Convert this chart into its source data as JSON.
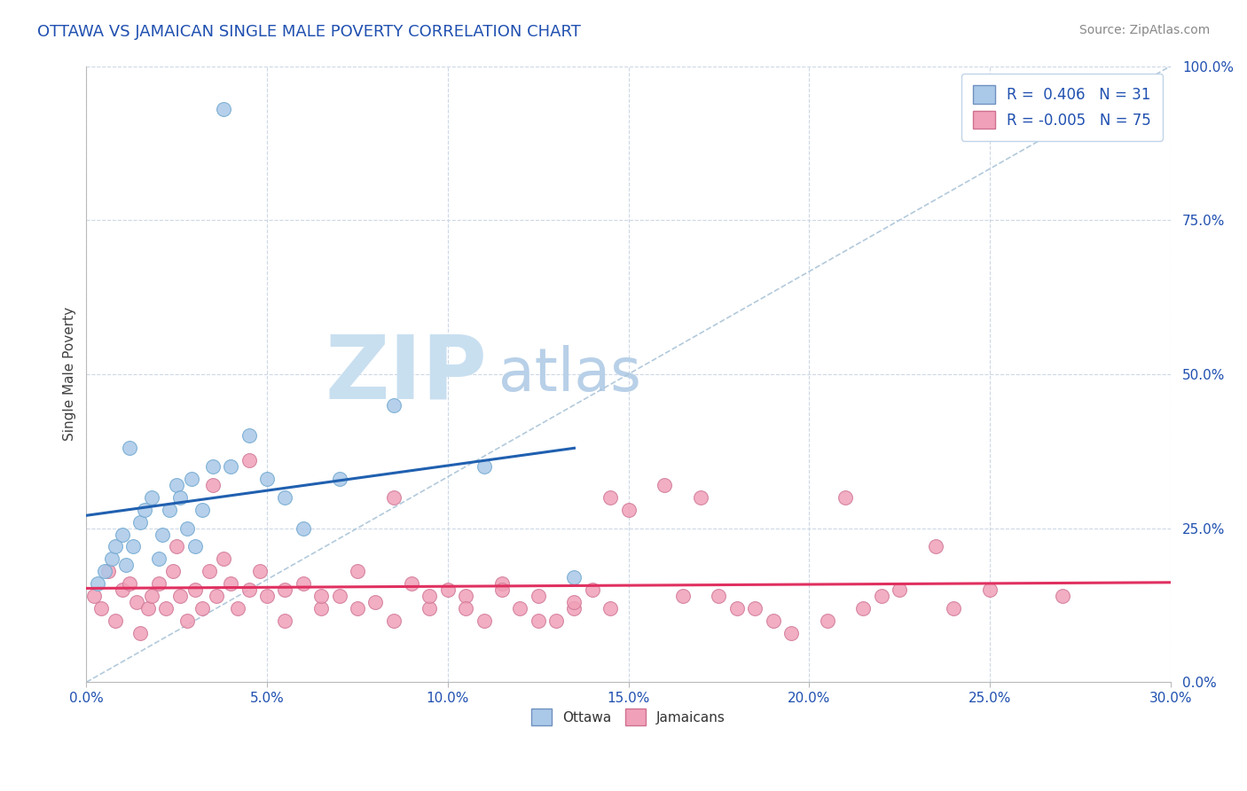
{
  "title": "OTTAWA VS JAMAICAN SINGLE MALE POVERTY CORRELATION CHART",
  "source_text": "Source: ZipAtlas.com",
  "ylabel": "Single Male Poverty",
  "xlim": [
    0.0,
    30.0
  ],
  "ylim": [
    0.0,
    100.0
  ],
  "yticks": [
    0.0,
    25.0,
    50.0,
    75.0,
    100.0
  ],
  "xticks": [
    0.0,
    5.0,
    10.0,
    15.0,
    20.0,
    25.0,
    30.0
  ],
  "legend_R_blue": "0.406",
  "legend_N_blue": "31",
  "legend_R_pink": "-0.005",
  "legend_N_pink": "75",
  "blue_dot_color": "#aac8e8",
  "pink_dot_color": "#f0a0b8",
  "blue_line_color": "#2060b0",
  "pink_line_color": "#e03060",
  "legend_text_color": "#2050b0",
  "title_color": "#2050b0",
  "axis_tick_color": "#2050b0",
  "ylabel_color": "#404040",
  "watermark_zip_color": "#c8dff0",
  "watermark_atlas_color": "#b8d0e8",
  "background_color": "#ffffff",
  "grid_color": "#c8d4e4",
  "ottawa_x": [
    0.3,
    0.5,
    0.7,
    0.8,
    1.0,
    1.1,
    1.3,
    1.5,
    1.6,
    1.8,
    2.0,
    2.1,
    2.3,
    2.5,
    2.6,
    2.8,
    3.0,
    3.2,
    3.5,
    4.0,
    4.5,
    5.0,
    5.5,
    6.0,
    7.0,
    8.5,
    11.0,
    13.5,
    1.2,
    2.9,
    3.8
  ],
  "ottawa_y": [
    16.0,
    18.0,
    20.0,
    22.0,
    24.0,
    19.0,
    22.0,
    26.0,
    28.0,
    30.0,
    20.0,
    24.0,
    28.0,
    32.0,
    30.0,
    25.0,
    22.0,
    28.0,
    35.0,
    35.0,
    40.0,
    33.0,
    30.0,
    25.0,
    33.0,
    45.0,
    35.0,
    17.0,
    38.0,
    33.0,
    93.0
  ],
  "jamaican_x": [
    0.2,
    0.4,
    0.6,
    0.8,
    1.0,
    1.2,
    1.4,
    1.5,
    1.7,
    1.8,
    2.0,
    2.2,
    2.4,
    2.6,
    2.8,
    3.0,
    3.2,
    3.4,
    3.6,
    3.8,
    4.0,
    4.2,
    4.5,
    4.8,
    5.0,
    5.5,
    6.0,
    6.5,
    7.0,
    7.5,
    8.0,
    8.5,
    9.0,
    9.5,
    10.0,
    10.5,
    11.0,
    11.5,
    12.0,
    12.5,
    13.0,
    13.5,
    14.0,
    14.5,
    15.0,
    16.0,
    17.0,
    17.5,
    18.5,
    19.5,
    20.5,
    21.5,
    22.0,
    23.5,
    25.0,
    2.5,
    3.5,
    4.5,
    5.5,
    6.5,
    7.5,
    8.5,
    9.5,
    10.5,
    11.5,
    12.5,
    13.5,
    14.5,
    16.5,
    18.0,
    19.0,
    21.0,
    22.5,
    24.0,
    27.0
  ],
  "jamaican_y": [
    14.0,
    12.0,
    18.0,
    10.0,
    15.0,
    16.0,
    13.0,
    8.0,
    12.0,
    14.0,
    16.0,
    12.0,
    18.0,
    14.0,
    10.0,
    15.0,
    12.0,
    18.0,
    14.0,
    20.0,
    16.0,
    12.0,
    15.0,
    18.0,
    14.0,
    10.0,
    16.0,
    12.0,
    14.0,
    18.0,
    13.0,
    10.0,
    16.0,
    12.0,
    15.0,
    14.0,
    10.0,
    16.0,
    12.0,
    14.0,
    10.0,
    12.0,
    15.0,
    30.0,
    28.0,
    32.0,
    30.0,
    14.0,
    12.0,
    8.0,
    10.0,
    12.0,
    14.0,
    22.0,
    15.0,
    22.0,
    32.0,
    36.0,
    15.0,
    14.0,
    12.0,
    30.0,
    14.0,
    12.0,
    15.0,
    10.0,
    13.0,
    12.0,
    14.0,
    12.0,
    10.0,
    30.0,
    15.0,
    12.0,
    14.0
  ]
}
